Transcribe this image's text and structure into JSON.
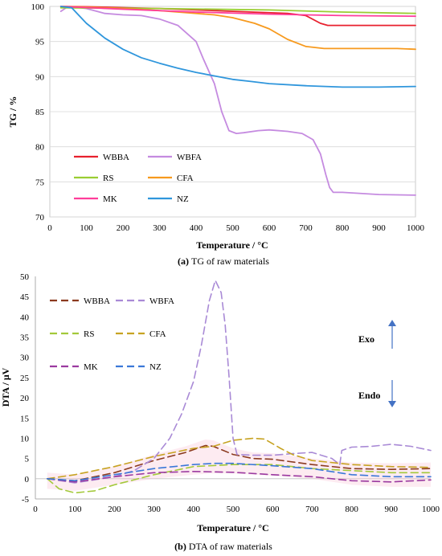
{
  "chart_data": [
    {
      "type": "line",
      "caption_label": "(a)",
      "caption_text": "TG of raw materials",
      "xlabel": "Temperature / °C",
      "ylabel": "TG / %",
      "xlim": [
        0,
        1000
      ],
      "ylim": [
        70,
        100
      ],
      "xticks": [
        "0",
        "100",
        "200",
        "300",
        "400",
        "500",
        "600",
        "700",
        "800",
        "900",
        "1000"
      ],
      "yticks": [
        "70",
        "75",
        "80",
        "85",
        "90",
        "95",
        "100"
      ],
      "grid": "horizontal",
      "legend_placement": "lower-left",
      "series": [
        {
          "name": "WBBA",
          "color": "#e8212e",
          "dash": "solid",
          "points": [
            [
              30,
              100
            ],
            [
              100,
              99.95
            ],
            [
              300,
              99.7
            ],
            [
              500,
              99.3
            ],
            [
              650,
              99.0
            ],
            [
              700,
              98.7
            ],
            [
              740,
              97.6
            ],
            [
              760,
              97.3
            ],
            [
              850,
              97.3
            ],
            [
              1000,
              97.3
            ]
          ]
        },
        {
          "name": "WBFA",
          "color": "#c58be0",
          "dash": "solid",
          "points": [
            [
              30,
              99.3
            ],
            [
              50,
              100
            ],
            [
              100,
              99.7
            ],
            [
              150,
              99.0
            ],
            [
              200,
              98.8
            ],
            [
              250,
              98.7
            ],
            [
              300,
              98.2
            ],
            [
              350,
              97.3
            ],
            [
              400,
              95.0
            ],
            [
              420,
              92.5
            ],
            [
              450,
              89.0
            ],
            [
              470,
              85.0
            ],
            [
              490,
              82.3
            ],
            [
              510,
              81.9
            ],
            [
              530,
              82.0
            ],
            [
              570,
              82.3
            ],
            [
              600,
              82.4
            ],
            [
              650,
              82.2
            ],
            [
              690,
              81.9
            ],
            [
              720,
              81.0
            ],
            [
              740,
              79.0
            ],
            [
              755,
              76.0
            ],
            [
              765,
              74.2
            ],
            [
              775,
              73.5
            ],
            [
              800,
              73.5
            ],
            [
              900,
              73.2
            ],
            [
              1000,
              73.1
            ]
          ]
        },
        {
          "name": "RS",
          "color": "#9acd32",
          "dash": "solid",
          "points": [
            [
              30,
              99.8
            ],
            [
              300,
              99.7
            ],
            [
              600,
              99.5
            ],
            [
              800,
              99.2
            ],
            [
              1000,
              99.0
            ]
          ]
        },
        {
          "name": "CFA",
          "color": "#f79a1e",
          "dash": "solid",
          "points": [
            [
              30,
              100
            ],
            [
              100,
              99.9
            ],
            [
              200,
              99.7
            ],
            [
              300,
              99.4
            ],
            [
              400,
              99.0
            ],
            [
              450,
              98.8
            ],
            [
              500,
              98.4
            ],
            [
              560,
              97.6
            ],
            [
              600,
              96.8
            ],
            [
              650,
              95.3
            ],
            [
              700,
              94.3
            ],
            [
              750,
              94.0
            ],
            [
              850,
              94.0
            ],
            [
              950,
              94.0
            ],
            [
              1000,
              93.9
            ]
          ]
        },
        {
          "name": "MK",
          "color": "#ff3d9a",
          "dash": "solid",
          "points": [
            [
              30,
              100
            ],
            [
              200,
              99.6
            ],
            [
              400,
              99.2
            ],
            [
              600,
              98.9
            ],
            [
              800,
              98.7
            ],
            [
              1000,
              98.6
            ]
          ]
        },
        {
          "name": "NZ",
          "color": "#2f96dc",
          "dash": "solid",
          "points": [
            [
              30,
              100
            ],
            [
              60,
              99.8
            ],
            [
              80,
              98.7
            ],
            [
              100,
              97.6
            ],
            [
              150,
              95.5
            ],
            [
              200,
              93.9
            ],
            [
              250,
              92.7
            ],
            [
              300,
              91.9
            ],
            [
              350,
              91.2
            ],
            [
              400,
              90.6
            ],
            [
              450,
              90.1
            ],
            [
              500,
              89.6
            ],
            [
              550,
              89.3
            ],
            [
              600,
              89.0
            ],
            [
              700,
              88.7
            ],
            [
              800,
              88.5
            ],
            [
              900,
              88.5
            ],
            [
              1000,
              88.6
            ]
          ]
        }
      ],
      "legend_order": [
        [
          "WBBA",
          "WBFA"
        ],
        [
          "RS",
          "CFA"
        ],
        [
          "MK",
          "NZ"
        ]
      ]
    },
    {
      "type": "line",
      "caption_label": "(b)",
      "caption_text": "DTA of raw materials",
      "xlabel": "Temperature / °C",
      "ylabel": "DTA / μV",
      "xlim": [
        0,
        1000
      ],
      "ylim": [
        -5,
        50
      ],
      "xticks": [
        "0",
        "100",
        "200",
        "300",
        "400",
        "500",
        "600",
        "700",
        "800",
        "900",
        "1000"
      ],
      "yticks": [
        "-5",
        "0",
        "5",
        "10",
        "15",
        "20",
        "25",
        "30",
        "35",
        "40",
        "45",
        "50"
      ],
      "grid": "none",
      "legend_placement": "top-left",
      "annotations": {
        "exo": "Exo",
        "endo": "Endo"
      },
      "series": [
        {
          "name": "WBBA",
          "color": "#8b3a1f",
          "dash": "dashed",
          "points": [
            [
              30,
              0
            ],
            [
              100,
              -0.5
            ],
            [
              200,
              1.5
            ],
            [
              300,
              4.5
            ],
            [
              380,
              6.5
            ],
            [
              430,
              8.2
            ],
            [
              450,
              8.0
            ],
            [
              500,
              6.0
            ],
            [
              550,
              5.0
            ],
            [
              600,
              4.8
            ],
            [
              700,
              3.5
            ],
            [
              800,
              2.5
            ],
            [
              900,
              2.3
            ],
            [
              1000,
              2.5
            ]
          ]
        },
        {
          "name": "WBFA",
          "color": "#a98ad6",
          "dash": "dashed",
          "points": [
            [
              30,
              0
            ],
            [
              100,
              -1.0
            ],
            [
              200,
              0.5
            ],
            [
              250,
              2
            ],
            [
              300,
              5
            ],
            [
              340,
              10
            ],
            [
              370,
              16
            ],
            [
              400,
              24
            ],
            [
              420,
              33
            ],
            [
              440,
              44
            ],
            [
              455,
              49
            ],
            [
              470,
              46
            ],
            [
              480,
              38
            ],
            [
              490,
              25
            ],
            [
              500,
              10
            ],
            [
              510,
              6
            ],
            [
              550,
              5.8
            ],
            [
              600,
              5.8
            ],
            [
              650,
              6.2
            ],
            [
              700,
              6.5
            ],
            [
              750,
              5.0
            ],
            [
              770,
              3.5
            ],
            [
              775,
              7.0
            ],
            [
              800,
              7.8
            ],
            [
              850,
              8.0
            ],
            [
              900,
              8.5
            ],
            [
              950,
              8.0
            ],
            [
              1000,
              7.0
            ]
          ]
        },
        {
          "name": "RS",
          "color": "#a3c93a",
          "dash": "dashed",
          "points": [
            [
              30,
              0
            ],
            [
              60,
              -2.5
            ],
            [
              100,
              -3.5
            ],
            [
              150,
              -3.0
            ],
            [
              200,
              -1.5
            ],
            [
              300,
              1.0
            ],
            [
              400,
              3.0
            ],
            [
              500,
              3.5
            ],
            [
              600,
              3.5
            ],
            [
              700,
              2.5
            ],
            [
              800,
              2.0
            ],
            [
              900,
              1.5
            ],
            [
              1000,
              1.5
            ]
          ]
        },
        {
          "name": "CFA",
          "color": "#c7a322",
          "dash": "dashed",
          "points": [
            [
              30,
              0
            ],
            [
              100,
              1.0
            ],
            [
              200,
              3.0
            ],
            [
              300,
              5.5
            ],
            [
              400,
              7.5
            ],
            [
              450,
              8.0
            ],
            [
              500,
              9.5
            ],
            [
              550,
              10.0
            ],
            [
              580,
              9.8
            ],
            [
              620,
              7.5
            ],
            [
              650,
              6.0
            ],
            [
              700,
              4.5
            ],
            [
              800,
              3.5
            ],
            [
              900,
              3.0
            ],
            [
              1000,
              2.8
            ]
          ]
        },
        {
          "name": "MK",
          "color": "#9b3aa0",
          "dash": "dashed",
          "points": [
            [
              30,
              0
            ],
            [
              100,
              -0.8
            ],
            [
              200,
              0.5
            ],
            [
              300,
              1.5
            ],
            [
              400,
              1.8
            ],
            [
              500,
              1.6
            ],
            [
              600,
              1.0
            ],
            [
              700,
              0.5
            ],
            [
              800,
              -0.5
            ],
            [
              900,
              -0.8
            ],
            [
              1000,
              -0.3
            ]
          ]
        },
        {
          "name": "NZ",
          "color": "#3b78d8",
          "dash": "dashed",
          "points": [
            [
              30,
              0
            ],
            [
              100,
              -0.5
            ],
            [
              200,
              1.0
            ],
            [
              300,
              2.5
            ],
            [
              400,
              3.5
            ],
            [
              450,
              3.8
            ],
            [
              500,
              3.8
            ],
            [
              600,
              3.2
            ],
            [
              700,
              2.5
            ],
            [
              800,
              1.0
            ],
            [
              900,
              0.5
            ],
            [
              1000,
              0.5
            ]
          ]
        }
      ],
      "legend_order": [
        [
          "WBBA",
          "WBFA"
        ],
        [
          "RS",
          "CFA"
        ],
        [
          "MK",
          "NZ"
        ]
      ]
    }
  ]
}
